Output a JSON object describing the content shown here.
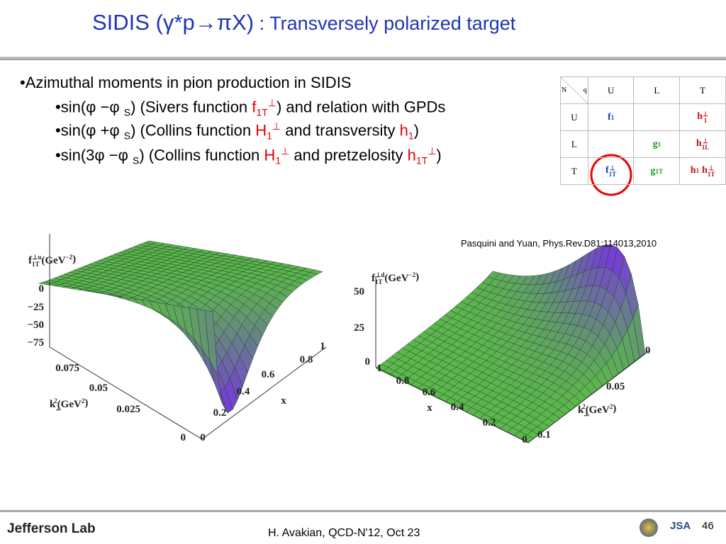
{
  "header": {
    "title_main": "SIDIS (γ*p→πX)",
    "title_sub": " : Transversely  polarized target"
  },
  "bullets": [
    [
      "•Azimuthal moments in pion production in SIDIS"
    ],
    [
      "•sin(φ −φ ",
      "S",
      ") (Sivers function ",
      "f",
      "1T",
      "⊥",
      ")  and relation with GPDs"
    ],
    [
      "•sin(φ +φ ",
      "S",
      ") (Collins function ",
      "H",
      "1",
      "⊥",
      " and transversity ",
      "h",
      "1",
      ")"
    ],
    [
      "•sin(3φ −φ ",
      "S",
      ") (Collins function ",
      "H",
      "1",
      "⊥",
      " and pretzelosity ",
      "h",
      "1T",
      "⊥",
      ")"
    ]
  ],
  "table": {
    "corner": [
      "N",
      "q"
    ],
    "columns": [
      "U",
      "L",
      "T"
    ],
    "rows": [
      {
        "label": "U",
        "cells": [
          [
            [
              "f",
              "1"
            ]
          ],
          [],
          [
            [
              "h",
              "1",
              "⊥"
            ]
          ]
        ]
      },
      {
        "label": "L",
        "cells": [
          [],
          [
            [
              "g",
              "1"
            ]
          ],
          [
            [
              "h",
              "1L",
              "⊥"
            ]
          ]
        ]
      },
      {
        "label": "T",
        "cells": [
          [
            [
              "f",
              "1T",
              "⊥"
            ]
          ],
          [
            [
              "g",
              "1T"
            ]
          ],
          [
            [
              "h",
              "1"
            ],
            [
              "h",
              "1T",
              "⊥"
            ]
          ]
        ]
      }
    ]
  },
  "citation": "Pasquini and Yuan, Phys.Rev.D81:114013,2010",
  "plots": [
    {
      "ylabel": [
        "f",
        "1T",
        "⊥u",
        "(GeV",
        "−2",
        ")"
      ],
      "zticks": [
        "0",
        "−25",
        "−50",
        "−75"
      ],
      "kticks": [
        "0.075",
        "0.05",
        "0.025",
        "0"
      ],
      "xticks": [
        "0",
        "0.2",
        "0.4",
        "0.6",
        "0.8",
        "1"
      ],
      "xlabel": "x",
      "klabel": [
        "k",
        "⊥",
        "2",
        "(GeV",
        "2",
        ")"
      ]
    },
    {
      "ylabel": [
        "f",
        "1T",
        "⊥d",
        "(GeV",
        "−2",
        ")"
      ],
      "zticks": [
        "50",
        "25",
        "0"
      ],
      "kticks": [
        "0",
        "0.05",
        "0.1"
      ],
      "xticks": [
        "1",
        "0.8",
        "0.6",
        "0.4",
        "0.2",
        "0"
      ],
      "xlabel": "x",
      "klabel": [
        "k",
        "⊥",
        "2",
        "(GeV",
        "2",
        ")"
      ]
    }
  ],
  "footer": {
    "logo_left": "Jefferson Lab",
    "text": "H. Avakian, QCD-N'12,  Oct 23",
    "logo_right": "JSA",
    "page": "46"
  }
}
